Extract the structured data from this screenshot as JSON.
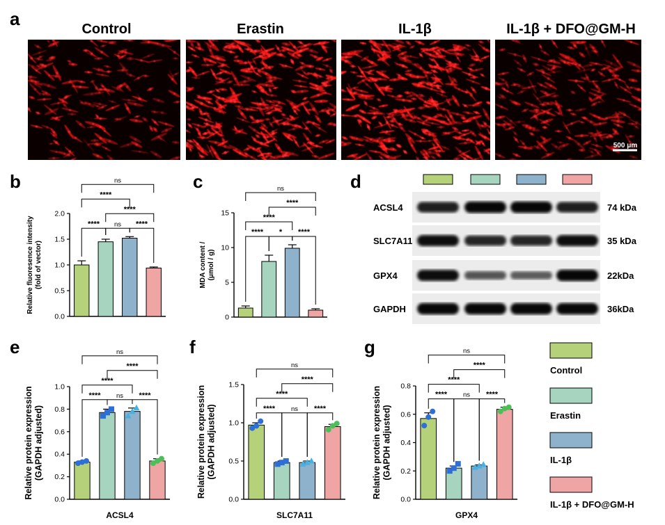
{
  "panel_labels": {
    "a": "a",
    "b": "b",
    "c": "c",
    "d": "d",
    "e": "e",
    "f": "f",
    "g": "g"
  },
  "groups": [
    "Control",
    "Erastin",
    "IL-1β",
    "IL-1β + DFO@GM-H"
  ],
  "colors": {
    "Control": "#b5d27a",
    "Erastin": "#a6d4bf",
    "IL-1β": "#8fb2cc",
    "IL-1β + DFO@GM-H": "#f0a5a5",
    "point_blue": "#2d6fd6",
    "point_green": "#4cbf5a",
    "fluor": "#ff1414"
  },
  "micrographs": {
    "titles": [
      "Control",
      "Erastin",
      "IL-1β",
      "IL-1β + DFO@GM-H"
    ],
    "scale_bar": "500 μm"
  },
  "western_blot": {
    "rows": [
      {
        "protein": "ACSL4",
        "size": "74 kDa",
        "band_intensity": [
          0.8,
          0.95,
          0.95,
          0.8
        ]
      },
      {
        "protein": "SLC7A11",
        "size": "35 kDa",
        "band_intensity": [
          0.9,
          0.75,
          0.75,
          0.9
        ]
      },
      {
        "protein": "GPX4",
        "size": "22kDa",
        "band_intensity": [
          0.9,
          0.45,
          0.4,
          0.95
        ]
      },
      {
        "protein": "GAPDH",
        "size": "36kDa",
        "band_intensity": [
          0.95,
          0.95,
          0.95,
          0.95
        ]
      }
    ]
  },
  "legend": {
    "entries": [
      "Control",
      "Erastin",
      "IL-1β",
      "IL-1β + DFO@GM-H"
    ]
  },
  "chart_data": [
    {
      "panel": "b",
      "type": "bar",
      "categories": [
        "Control",
        "Erastin",
        "IL-1β",
        "IL-1β + DFO@GM-H"
      ],
      "values": [
        1.0,
        1.45,
        1.52,
        0.94
      ],
      "errors": [
        0.08,
        0.05,
        0.03,
        0.02
      ],
      "ylabel": "Relative fluoresence intensity (fold of vector)",
      "xlabel": "",
      "ylim": [
        0,
        2.0
      ],
      "yticks": [
        "0.0",
        "0.5",
        "1.0",
        "1.5",
        "2.0"
      ],
      "comparisons": [
        {
          "from": 0,
          "to": 1,
          "label": "****",
          "level": 0
        },
        {
          "from": 1,
          "to": 2,
          "label": "ns",
          "level": 0
        },
        {
          "from": 2,
          "to": 3,
          "label": "****",
          "level": 0
        },
        {
          "from": 1,
          "to": 3,
          "label": "****",
          "level": 1
        },
        {
          "from": 0,
          "to": 2,
          "label": "****",
          "level": 2
        },
        {
          "from": 0,
          "to": 3,
          "label": "ns",
          "level": 3
        }
      ]
    },
    {
      "panel": "c",
      "type": "bar",
      "categories": [
        "Control",
        "Erastin",
        "IL-1β",
        "IL-1β + DFO@GM-H"
      ],
      "values": [
        1.3,
        8.0,
        9.9,
        1.0
      ],
      "errors": [
        0.3,
        0.9,
        0.5,
        0.2
      ],
      "ylabel": "MDA content / (μmol / g)",
      "xlabel": "",
      "ylim": [
        0,
        15
      ],
      "yticks": [
        "0",
        "5",
        "10",
        "15"
      ],
      "comparisons": [
        {
          "from": 0,
          "to": 1,
          "label": "****",
          "level": 0
        },
        {
          "from": 1,
          "to": 2,
          "label": "*",
          "level": 0
        },
        {
          "from": 2,
          "to": 3,
          "label": "****",
          "level": 0
        },
        {
          "from": 0,
          "to": 2,
          "label": "****",
          "level": 1
        },
        {
          "from": 1,
          "to": 3,
          "label": "****",
          "level": 2
        },
        {
          "from": 0,
          "to": 3,
          "label": "ns",
          "level": 3
        }
      ]
    },
    {
      "panel": "e",
      "type": "bar",
      "categories": [
        "Control",
        "Erastin",
        "IL-1β",
        "IL-1β + DFO@GM-H"
      ],
      "values": [
        0.33,
        0.77,
        0.78,
        0.34
      ],
      "errors": [
        0.01,
        0.03,
        0.03,
        0.02
      ],
      "points": [
        [
          0.32,
          0.33,
          0.34
        ],
        [
          0.74,
          0.77,
          0.8
        ],
        [
          0.74,
          0.78,
          0.81
        ],
        [
          0.32,
          0.34,
          0.36
        ]
      ],
      "point_colors": [
        "#2d6fd6",
        "#2d6fd6",
        "#4ab0e0",
        "#4cbf5a"
      ],
      "point_shapes": [
        "circle",
        "square",
        "triangle",
        "circle"
      ],
      "ylabel": "Relative protein expression (GAPDH adjusted)",
      "xlabel": "ACSL4",
      "ylim": [
        0,
        1.0
      ],
      "yticks": [
        "0.0",
        "0.2",
        "0.4",
        "0.6",
        "0.8",
        "1.0"
      ],
      "comparisons": [
        {
          "from": 0,
          "to": 1,
          "label": "****",
          "level": 0
        },
        {
          "from": 1,
          "to": 2,
          "label": "ns",
          "level": 0
        },
        {
          "from": 2,
          "to": 3,
          "label": "****",
          "level": 0
        },
        {
          "from": 0,
          "to": 2,
          "label": "****",
          "level": 1
        },
        {
          "from": 1,
          "to": 3,
          "label": "****",
          "level": 2
        },
        {
          "from": 0,
          "to": 3,
          "label": "ns",
          "level": 3
        }
      ]
    },
    {
      "panel": "f",
      "type": "bar",
      "categories": [
        "Control",
        "Erastin",
        "IL-1β",
        "IL-1β + DFO@GM-H"
      ],
      "values": [
        0.97,
        0.48,
        0.48,
        0.95
      ],
      "errors": [
        0.03,
        0.02,
        0.02,
        0.03
      ],
      "points": [
        [
          0.93,
          0.96,
          1.02
        ],
        [
          0.46,
          0.48,
          0.5
        ],
        [
          0.46,
          0.48,
          0.5
        ],
        [
          0.91,
          0.96,
          0.99
        ]
      ],
      "point_colors": [
        "#2d6fd6",
        "#2d6fd6",
        "#4ab0e0",
        "#4cbf5a"
      ],
      "point_shapes": [
        "circle",
        "square",
        "triangle",
        "circle"
      ],
      "ylabel": "Relative protein expression (GAPDH adjusted)",
      "xlabel": "SLC7A11",
      "ylim": [
        0,
        1.5
      ],
      "yticks": [
        "0.0",
        "0.5",
        "1.0",
        "1.5"
      ],
      "comparisons": [
        {
          "from": 0,
          "to": 1,
          "label": "****",
          "level": 0
        },
        {
          "from": 1,
          "to": 2,
          "label": "ns",
          "level": 0
        },
        {
          "from": 2,
          "to": 3,
          "label": "****",
          "level": 0
        },
        {
          "from": 0,
          "to": 2,
          "label": "****",
          "level": 1
        },
        {
          "from": 1,
          "to": 3,
          "label": "****",
          "level": 2
        },
        {
          "from": 0,
          "to": 3,
          "label": "ns",
          "level": 3
        }
      ]
    },
    {
      "panel": "g",
      "type": "bar",
      "categories": [
        "Control",
        "Erastin",
        "IL-1β",
        "IL-1β + DFO@GM-H"
      ],
      "values": [
        0.57,
        0.22,
        0.235,
        0.635
      ],
      "errors": [
        0.04,
        0.015,
        0.008,
        0.015
      ],
      "points": [
        [
          0.52,
          0.58,
          0.62
        ],
        [
          0.2,
          0.22,
          0.25
        ],
        [
          0.225,
          0.235,
          0.245
        ],
        [
          0.62,
          0.64,
          0.65
        ]
      ],
      "point_colors": [
        "#2d6fd6",
        "#2d6fd6",
        "#4ab0e0",
        "#4cbf5a"
      ],
      "point_shapes": [
        "circle",
        "square",
        "triangle",
        "circle"
      ],
      "ylabel": "Relative protein expression (GAPDH adjusted)",
      "xlabel": "GPX4",
      "ylim": [
        0,
        0.8
      ],
      "yticks": [
        "0.0",
        "0.2",
        "0.4",
        "0.6",
        "0.8"
      ],
      "comparisons": [
        {
          "from": 0,
          "to": 1,
          "label": "****",
          "level": 0
        },
        {
          "from": 1,
          "to": 2,
          "label": "ns",
          "level": 0
        },
        {
          "from": 2,
          "to": 3,
          "label": "****",
          "level": 0
        },
        {
          "from": 0,
          "to": 2,
          "label": "****",
          "level": 1
        },
        {
          "from": 1,
          "to": 3,
          "label": "****",
          "level": 2
        },
        {
          "from": 0,
          "to": 3,
          "label": "ns",
          "level": 3
        }
      ]
    }
  ]
}
